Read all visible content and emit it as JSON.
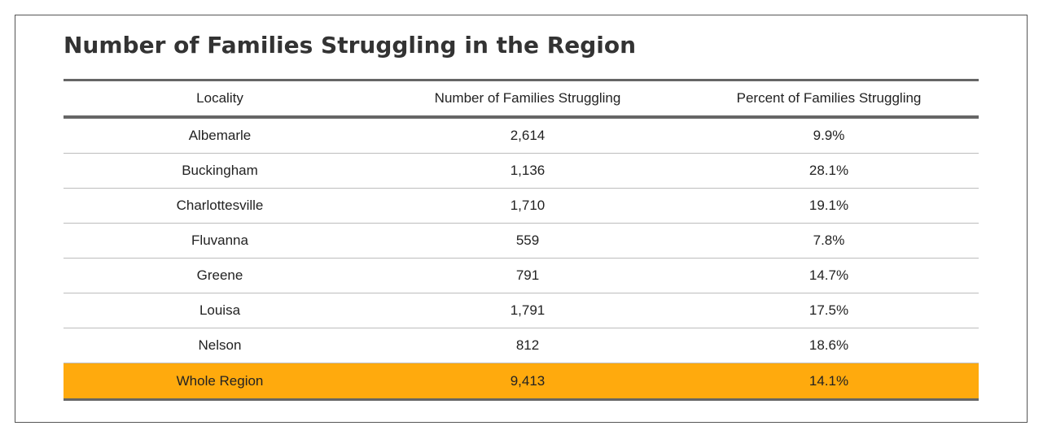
{
  "title": "Number of Families Struggling in the Region",
  "columns": [
    "Locality",
    "Number of Families Struggling",
    "Percent of Families Struggling"
  ],
  "rows": [
    {
      "locality": "Albemarle",
      "number": "2,614",
      "percent": "9.9%"
    },
    {
      "locality": "Buckingham",
      "number": "1,136",
      "percent": "28.1%"
    },
    {
      "locality": "Charlottesville",
      "number": "1,710",
      "percent": "19.1%"
    },
    {
      "locality": "Fluvanna",
      "number": "559",
      "percent": "7.8%"
    },
    {
      "locality": "Greene",
      "number": "791",
      "percent": "14.7%"
    },
    {
      "locality": "Louisa",
      "number": "1,791",
      "percent": "17.5%"
    },
    {
      "locality": "Nelson",
      "number": "812",
      "percent": "18.6%"
    }
  ],
  "total": {
    "locality": "Whole Region",
    "number": "9,413",
    "percent": "14.1%"
  },
  "colors": {
    "highlight": "#FFAA0D",
    "rule": "#666666",
    "title": "#333333"
  }
}
